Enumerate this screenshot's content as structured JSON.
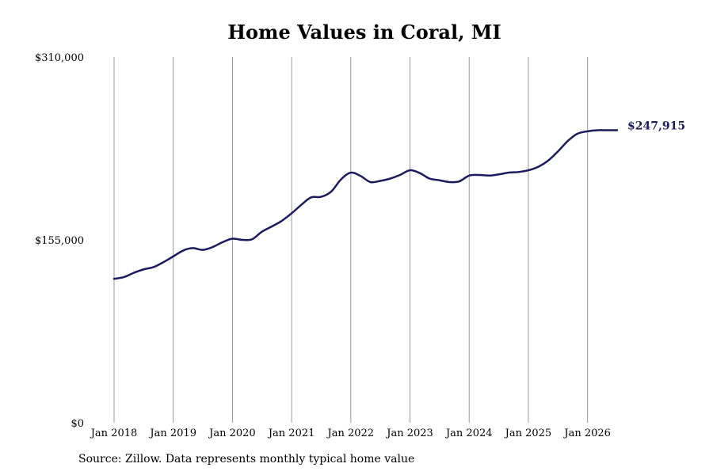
{
  "chart_data": {
    "type": "line",
    "title": "Home Values in Coral, MI",
    "xlabel": "",
    "ylabel": "",
    "ylim": [
      0,
      310000
    ],
    "y_ticks": [
      {
        "value": 0,
        "label": "$0"
      },
      {
        "value": 155000,
        "label": "$155,000"
      },
      {
        "value": 310000,
        "label": "$310,000"
      }
    ],
    "x_ticks": [
      {
        "value": 2018.0,
        "label": "Jan 2018"
      },
      {
        "value": 2019.0,
        "label": "Jan 2019"
      },
      {
        "value": 2020.0,
        "label": "Jan 2020"
      },
      {
        "value": 2021.0,
        "label": "Jan 2021"
      },
      {
        "value": 2022.0,
        "label": "Jan 2022"
      },
      {
        "value": 2023.0,
        "label": "Jan 2023"
      },
      {
        "value": 2024.0,
        "label": "Jan 2024"
      },
      {
        "value": 2025.0,
        "label": "Jan 2025"
      },
      {
        "value": 2026.0,
        "label": "Jan 2026"
      }
    ],
    "xlim": [
      2018.0,
      2026.5
    ],
    "grid": "vertical",
    "line_color": "#1b1a5e",
    "end_label": "$247,915",
    "series": [
      {
        "x": [
          2018.0,
          2018.17,
          2018.33,
          2018.5,
          2018.67,
          2018.83,
          2019.0,
          2019.17,
          2019.33,
          2019.5,
          2019.67,
          2019.83,
          2020.0,
          2020.17,
          2020.33,
          2020.5,
          2020.67,
          2020.83,
          2021.0,
          2021.17,
          2021.33,
          2021.5,
          2021.67,
          2021.83,
          2022.0,
          2022.17,
          2022.33,
          2022.5,
          2022.67,
          2022.83,
          2023.0,
          2023.17,
          2023.33,
          2023.5,
          2023.67,
          2023.83,
          2024.0,
          2024.17,
          2024.33,
          2024.5,
          2024.67,
          2024.83,
          2025.0,
          2025.17,
          2025.33,
          2025.5,
          2025.67,
          2025.83,
          2026.0,
          2026.17,
          2026.33,
          2026.5
        ],
        "values": [
          122000,
          123500,
          127000,
          130000,
          132000,
          136000,
          141000,
          146000,
          148000,
          146500,
          149000,
          153000,
          156000,
          155000,
          155500,
          162000,
          166500,
          171000,
          177500,
          185000,
          191000,
          191500,
          196000,
          206000,
          212000,
          209000,
          204000,
          205000,
          207000,
          210000,
          214000,
          211500,
          207000,
          205500,
          204000,
          204500,
          209500,
          210000,
          209500,
          210500,
          212000,
          212500,
          214000,
          217000,
          222000,
          230000,
          239000,
          245000,
          247000,
          247915,
          247915,
          247915
        ]
      }
    ]
  },
  "footer": {
    "source": "Source: Zillow. Data represents monthly typical home value"
  }
}
